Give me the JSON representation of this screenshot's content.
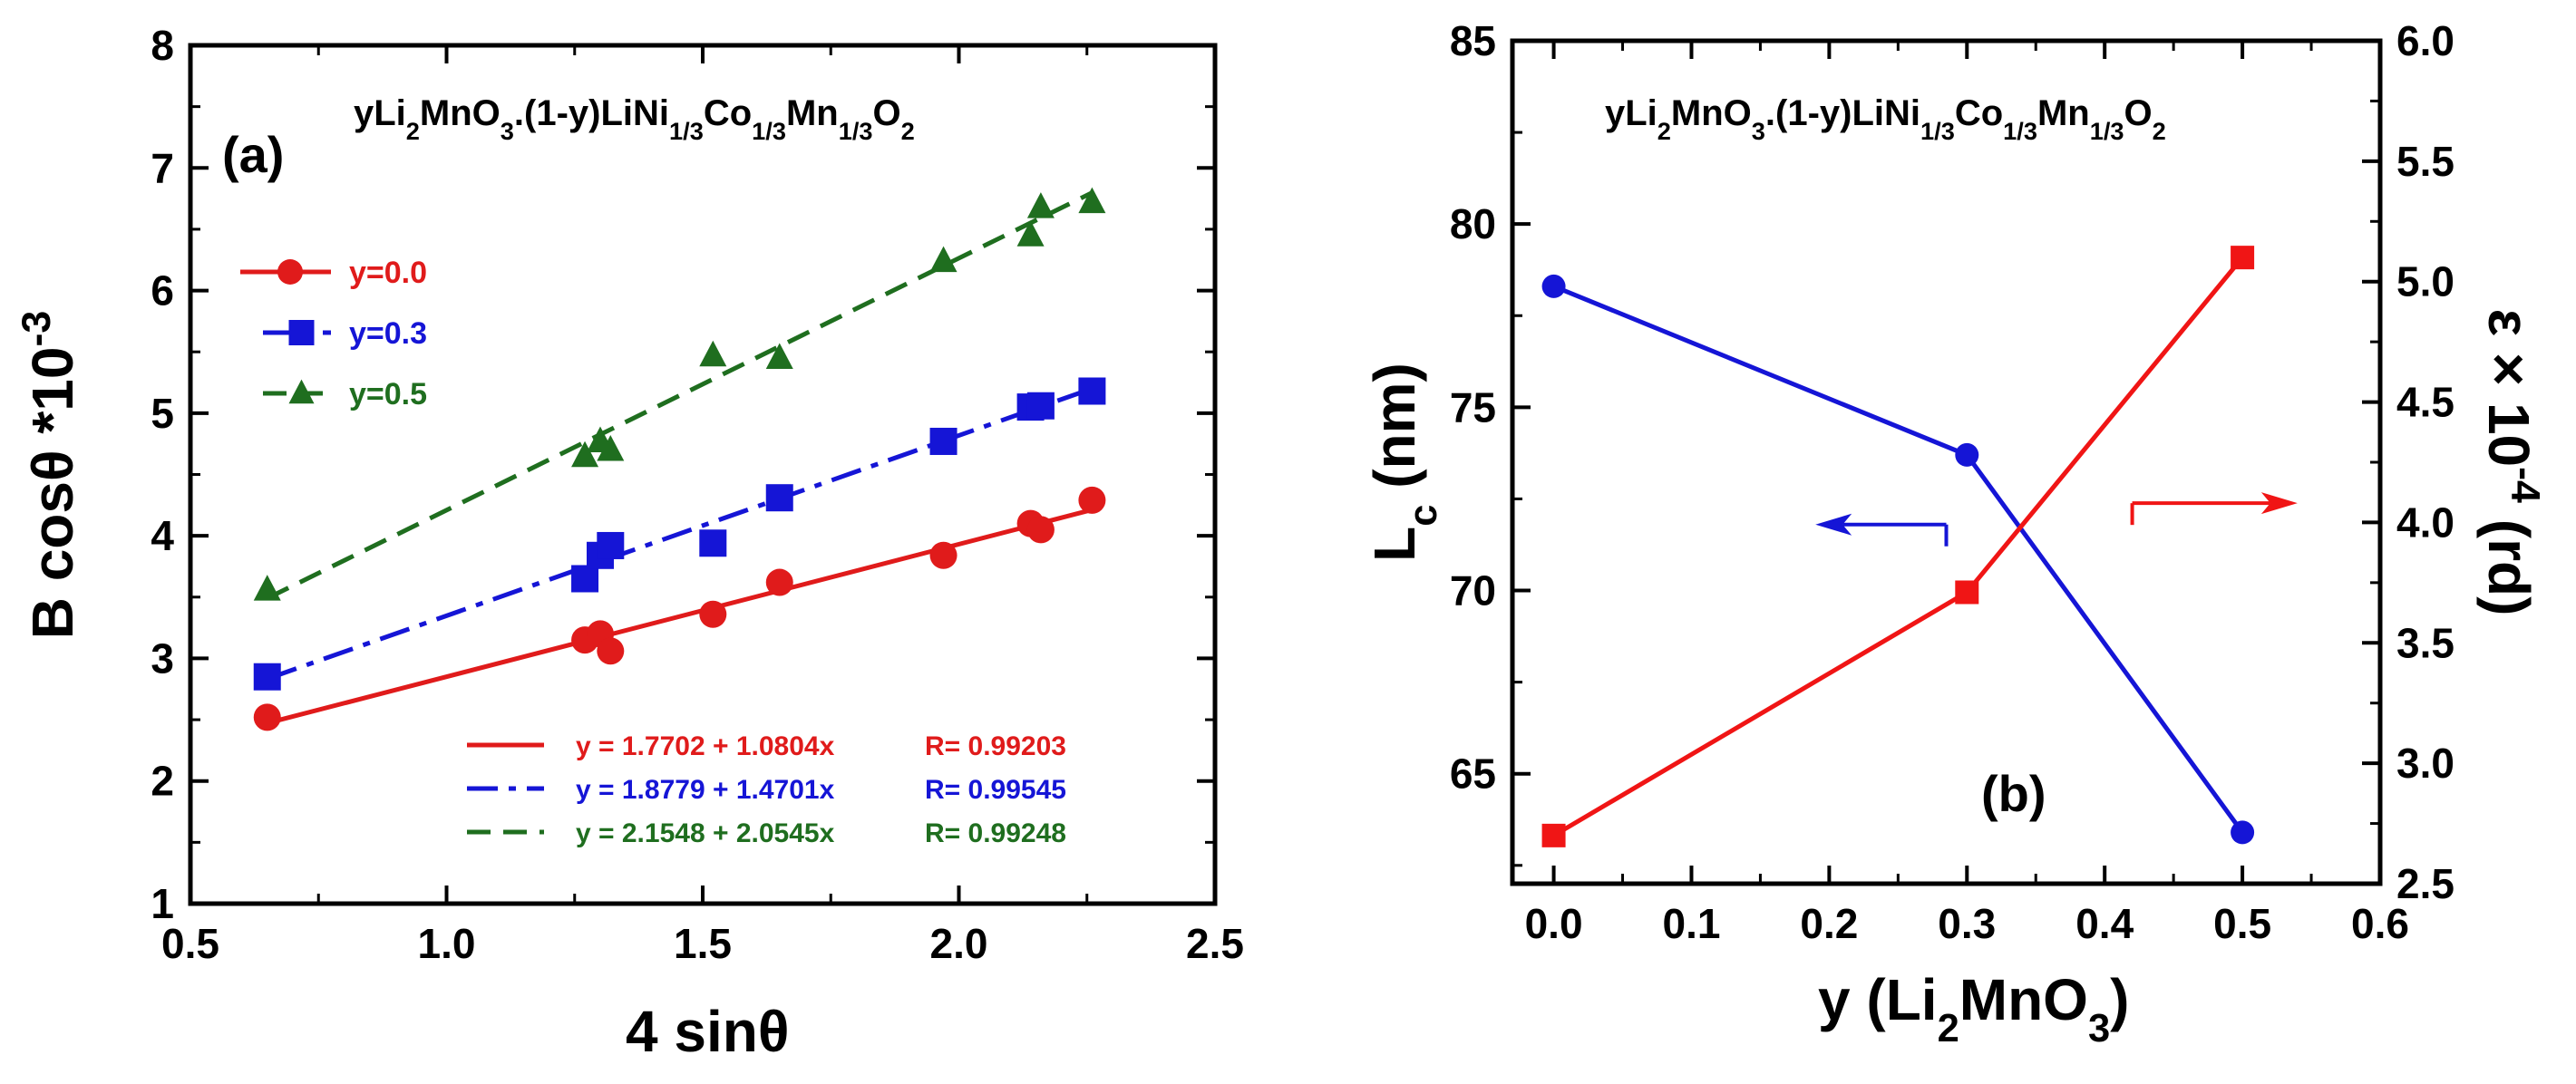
{
  "chart_data": [
    {
      "type": "scatter",
      "panel_label": "(a)",
      "title_formula": {
        "parts": [
          "yLi",
          "2",
          "MnO",
          "3",
          ".(1-y)LiNi",
          "1/3",
          "Co",
          "1/3",
          "Mn",
          "1/3",
          "O",
          "2"
        ],
        "sub": [
          false,
          true,
          false,
          true,
          false,
          true,
          false,
          true,
          false,
          true,
          false,
          true
        ]
      },
      "xlabel": "4 sinθ",
      "ylabel": "B cosθ *10-3",
      "xlim": [
        0.5,
        2.5
      ],
      "ylim": [
        1,
        8
      ],
      "xticks": [
        "0.5",
        "1.0",
        "1.5",
        "2.0",
        "2.5"
      ],
      "yticks": [
        "1",
        "2",
        "3",
        "4",
        "5",
        "6",
        "7",
        "8"
      ],
      "grid": false,
      "legend_position": "upper-left",
      "series": [
        {
          "name": "y=0.0",
          "marker": "circle",
          "line": "solid",
          "color": "#e01b1b",
          "x": [
            0.65,
            1.27,
            1.3,
            1.32,
            1.52,
            1.65,
            1.97,
            2.14,
            2.16,
            2.26
          ],
          "y": [
            2.52,
            3.15,
            3.2,
            3.06,
            3.36,
            3.62,
            3.84,
            4.1,
            4.05,
            4.29
          ],
          "fit": {
            "intercept": 1.7702,
            "slope": 1.0804,
            "equation": "y = 1.7702 + 1.0804x",
            "r": "R= 0.99203"
          }
        },
        {
          "name": "y=0.3",
          "marker": "square",
          "line": "dashdot",
          "color": "#1515d6",
          "x": [
            0.65,
            1.27,
            1.3,
            1.32,
            1.52,
            1.65,
            1.97,
            2.14,
            2.16,
            2.26
          ],
          "y": [
            2.85,
            3.65,
            3.84,
            3.92,
            3.94,
            4.31,
            4.77,
            5.05,
            5.06,
            5.18
          ],
          "fit": {
            "intercept": 1.8779,
            "slope": 1.4701,
            "equation": "y = 1.8779 + 1.4701x",
            "r": "R= 0.99545"
          }
        },
        {
          "name": "y=0.5",
          "marker": "triangle",
          "line": "dashed",
          "color": "#1f6e1f",
          "x": [
            0.65,
            1.27,
            1.3,
            1.32,
            1.52,
            1.65,
            1.97,
            2.14,
            2.16,
            2.26
          ],
          "y": [
            3.56,
            4.65,
            4.77,
            4.7,
            5.47,
            5.45,
            6.24,
            6.45,
            6.68,
            6.72
          ],
          "fit": {
            "intercept": 2.1548,
            "slope": 2.0545,
            "equation": "y = 2.1548 + 2.0545x",
            "r": "R= 0.99248"
          }
        }
      ]
    },
    {
      "type": "line",
      "panel_label": "(b)",
      "title_formula": {
        "parts": [
          "yLi",
          "2",
          "MnO",
          "3",
          ".(1-y)LiNi",
          "1/3",
          "Co",
          "1/3",
          "Mn",
          "1/3",
          "O",
          "2"
        ],
        "sub": [
          false,
          true,
          false,
          true,
          false,
          true,
          false,
          true,
          false,
          true,
          false,
          true
        ]
      },
      "xlabel": {
        "parts": [
          "y (Li",
          "2",
          "MnO",
          "3",
          ")"
        ],
        "sub": [
          false,
          true,
          false,
          true,
          false
        ]
      },
      "ylabel_left": {
        "parts": [
          "L",
          "c",
          " (nm)"
        ],
        "sub": [
          false,
          true,
          false
        ]
      },
      "ylabel_right": "ε × 10-4 (rd)",
      "xlim": [
        -0.03,
        0.6
      ],
      "ylim_left": [
        62,
        85
      ],
      "ylim_right": [
        2.5,
        6.0
      ],
      "xticks": [
        "0.0",
        "0.1",
        "0.2",
        "0.3",
        "0.4",
        "0.5",
        "0.6"
      ],
      "yticks_left": [
        "65",
        "70",
        "75",
        "80",
        "85"
      ],
      "yticks_right": [
        "2.5",
        "3.0",
        "3.5",
        "4.0",
        "4.5",
        "5.0",
        "5.5",
        "6.0"
      ],
      "grid": false,
      "series": [
        {
          "name": "Lc",
          "axis": "left",
          "marker": "circle",
          "color": "#1515d6",
          "x": [
            0.0,
            0.3,
            0.5
          ],
          "y": [
            78.3,
            73.7,
            63.4
          ]
        },
        {
          "name": "strain",
          "axis": "right",
          "marker": "square",
          "color": "#f01515",
          "x": [
            0.0,
            0.3,
            0.5
          ],
          "y": [
            2.7,
            3.71,
            5.1
          ]
        }
      ],
      "arrows": [
        {
          "points_to": "left",
          "color": "#1515d6",
          "x_from": 0.285,
          "x_to": 0.19,
          "y": 71.8,
          "axis": "left"
        },
        {
          "points_to": "right",
          "color": "#f01515",
          "x_from": 0.42,
          "x_to": 0.54,
          "y": 4.08,
          "axis": "right"
        }
      ]
    }
  ]
}
